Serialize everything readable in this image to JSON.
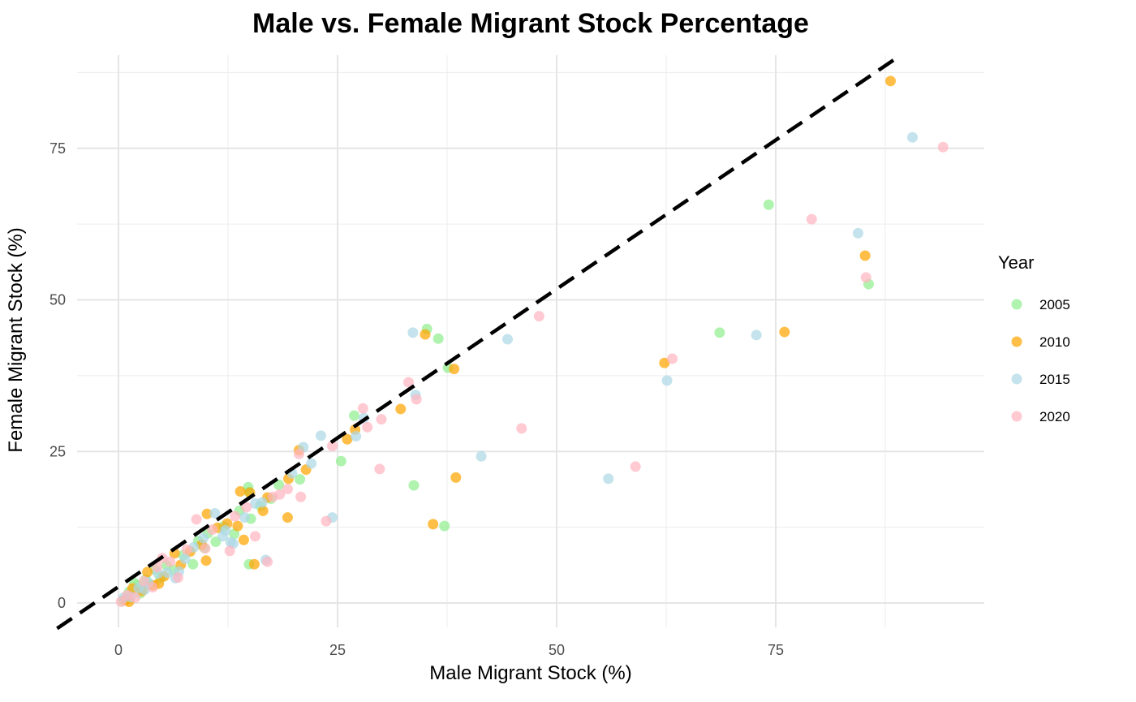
{
  "chart_data": {
    "type": "scatter",
    "title": "Male vs. Female Migrant Stock Percentage",
    "xlabel": "Male Migrant Stock (%)",
    "ylabel": "Female Migrant Stock (%)",
    "xlim": [
      -4.7,
      98.8
    ],
    "ylim": [
      -4,
      90.4
    ],
    "xticks": [
      0,
      25,
      50,
      75
    ],
    "yticks": [
      0,
      25,
      50,
      75
    ],
    "grid": true,
    "legend": {
      "title": "Year",
      "position": "right"
    },
    "reference_line": {
      "type": "y=x",
      "style": "dashed",
      "color": "#000000"
    },
    "series": [
      {
        "name": "2005",
        "color": "#90EE90",
        "points": [
          [
            74.2,
            65.7
          ],
          [
            85.6,
            52.6
          ],
          [
            68.6,
            44.6
          ],
          [
            35.2,
            45.2
          ],
          [
            36.5,
            43.6
          ],
          [
            37.6,
            38.8
          ],
          [
            33.7,
            19.4
          ],
          [
            37.2,
            12.7
          ],
          [
            26.9,
            30.9
          ],
          [
            25.4,
            23.4
          ],
          [
            14.9,
            6.4
          ],
          [
            14.8,
            19.1
          ],
          [
            14.9,
            18.3
          ],
          [
            18.3,
            19.5
          ],
          [
            20.7,
            20.4
          ],
          [
            0.5,
            0.4
          ],
          [
            1.2,
            1.8
          ],
          [
            1.8,
            3.3
          ],
          [
            2.5,
            1.6
          ],
          [
            3.1,
            3.9
          ],
          [
            4.2,
            5.5
          ],
          [
            4.8,
            4.1
          ],
          [
            5.5,
            6.2
          ],
          [
            6.3,
            5.4
          ],
          [
            7.4,
            7.9
          ],
          [
            8.5,
            6.4
          ],
          [
            9.1,
            10.2
          ],
          [
            10.2,
            11.5
          ],
          [
            11.1,
            10.1
          ],
          [
            12.0,
            12.6
          ],
          [
            13.2,
            11.4
          ],
          [
            13.8,
            15.2
          ],
          [
            15.1,
            13.9
          ],
          [
            16.2,
            16.0
          ],
          [
            17.4,
            17.2
          ],
          [
            2.2,
            2.9
          ],
          [
            3.6,
            3.0
          ],
          [
            9.8,
            9.1
          ]
        ]
      },
      {
        "name": "2010",
        "color": "#FFA500",
        "points": [
          [
            88.1,
            86.1
          ],
          [
            85.2,
            57.3
          ],
          [
            76.0,
            44.7
          ],
          [
            62.3,
            39.6
          ],
          [
            35.0,
            44.3
          ],
          [
            38.3,
            38.6
          ],
          [
            38.5,
            20.7
          ],
          [
            35.9,
            13.0
          ],
          [
            32.2,
            32.0
          ],
          [
            27.0,
            28.6
          ],
          [
            26.1,
            27.0
          ],
          [
            15.5,
            6.4
          ],
          [
            19.3,
            14.1
          ],
          [
            14.3,
            10.4
          ],
          [
            20.6,
            25.2
          ],
          [
            21.4,
            22.0
          ],
          [
            19.4,
            20.5
          ],
          [
            15.0,
            18.2
          ],
          [
            10.1,
            14.7
          ],
          [
            13.9,
            18.4
          ],
          [
            0.8,
            0.5
          ],
          [
            1.6,
            2.4
          ],
          [
            2.7,
            2.0
          ],
          [
            3.3,
            5.1
          ],
          [
            4.6,
            3.2
          ],
          [
            5.2,
            4.4
          ],
          [
            6.4,
            8.2
          ],
          [
            7.1,
            6.3
          ],
          [
            8.2,
            8.5
          ],
          [
            9.5,
            9.6
          ],
          [
            10.0,
            7.0
          ],
          [
            11.3,
            12.4
          ],
          [
            12.4,
            13.1
          ],
          [
            13.6,
            12.7
          ],
          [
            16.5,
            15.2
          ],
          [
            17.0,
            17.4
          ],
          [
            4.0,
            2.9
          ],
          [
            1.2,
            0.2
          ]
        ]
      },
      {
        "name": "2015",
        "color": "#ADD8E6",
        "points": [
          [
            90.6,
            76.8
          ],
          [
            84.4,
            61.0
          ],
          [
            72.8,
            44.2
          ],
          [
            62.6,
            36.7
          ],
          [
            55.9,
            20.5
          ],
          [
            41.4,
            24.2
          ],
          [
            44.4,
            43.5
          ],
          [
            33.6,
            44.6
          ],
          [
            33.9,
            34.3
          ],
          [
            24.4,
            14.1
          ],
          [
            28.0,
            30.5
          ],
          [
            23.1,
            27.6
          ],
          [
            21.1,
            25.7
          ],
          [
            16.8,
            7.1
          ],
          [
            19.8,
            21.4
          ],
          [
            22.0,
            23.0
          ],
          [
            27.1,
            27.5
          ],
          [
            0.6,
            0.9
          ],
          [
            1.4,
            1.0
          ],
          [
            2.3,
            2.5
          ],
          [
            3.4,
            3.4
          ],
          [
            4.5,
            4.9
          ],
          [
            5.6,
            5.0
          ],
          [
            6.5,
            4.1
          ],
          [
            7.6,
            7.3
          ],
          [
            8.6,
            9.2
          ],
          [
            9.7,
            10.7
          ],
          [
            11.0,
            14.8
          ],
          [
            11.9,
            11.0
          ],
          [
            12.8,
            10.0
          ],
          [
            13.1,
            9.8
          ],
          [
            14.4,
            14.1
          ],
          [
            15.6,
            16.4
          ],
          [
            16.4,
            16.6
          ],
          [
            6.9,
            5.2
          ],
          [
            3.0,
            2.2
          ],
          [
            12.2,
            12.0
          ]
        ]
      },
      {
        "name": "2020",
        "color": "#FFB6C1",
        "points": [
          [
            94.1,
            75.2
          ],
          [
            79.1,
            63.3
          ],
          [
            85.3,
            53.7
          ],
          [
            63.2,
            40.3
          ],
          [
            48.0,
            47.3
          ],
          [
            46.0,
            28.8
          ],
          [
            59.0,
            22.5
          ],
          [
            29.8,
            22.1
          ],
          [
            33.1,
            36.4
          ],
          [
            27.9,
            32.1
          ],
          [
            30.0,
            30.3
          ],
          [
            34.0,
            33.6
          ],
          [
            23.7,
            13.5
          ],
          [
            15.6,
            11.0
          ],
          [
            17.0,
            6.8
          ],
          [
            20.8,
            17.5
          ],
          [
            20.6,
            24.6
          ],
          [
            28.4,
            29.0
          ],
          [
            24.4,
            25.9
          ],
          [
            19.3,
            18.8
          ],
          [
            0.3,
            0.2
          ],
          [
            1.0,
            1.3
          ],
          [
            1.9,
            0.9
          ],
          [
            2.9,
            3.6
          ],
          [
            3.9,
            2.6
          ],
          [
            5.0,
            7.4
          ],
          [
            5.9,
            6.8
          ],
          [
            6.8,
            4.2
          ],
          [
            7.8,
            8.8
          ],
          [
            8.9,
            13.8
          ],
          [
            9.9,
            9.0
          ],
          [
            10.7,
            12.1
          ],
          [
            12.7,
            8.6
          ],
          [
            13.3,
            14.3
          ],
          [
            14.6,
            15.8
          ],
          [
            17.6,
            17.5
          ],
          [
            18.4,
            17.9
          ],
          [
            4.4,
            5.9
          ]
        ]
      }
    ]
  }
}
